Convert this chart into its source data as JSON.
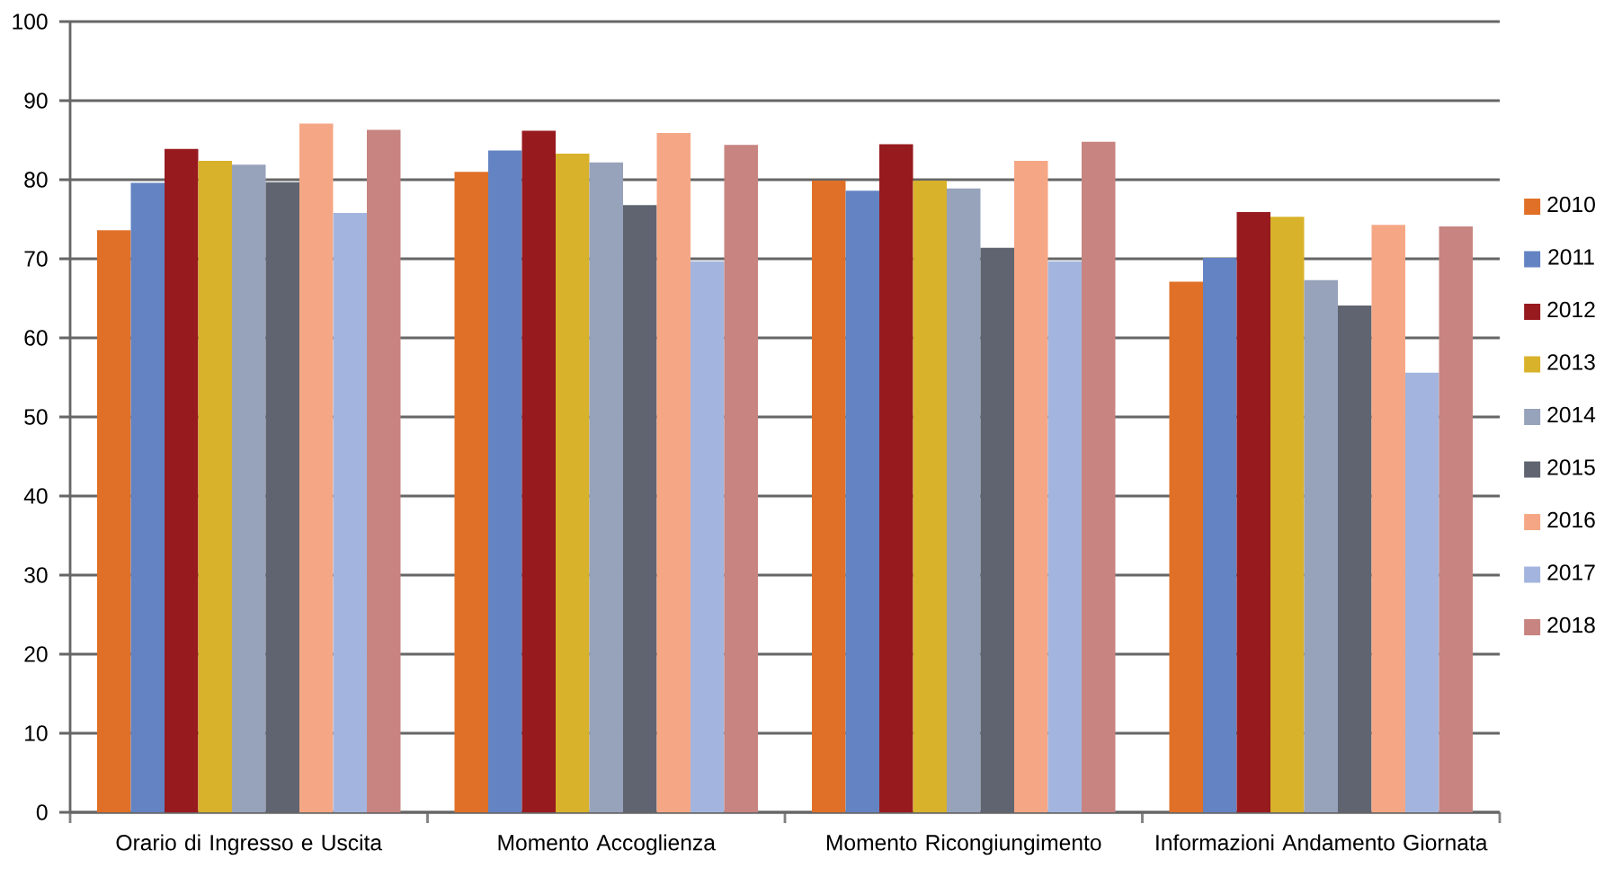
{
  "chart_data": {
    "type": "bar",
    "categories": [
      "Orario di Ingresso e Uscita",
      "Momento Accoglienza",
      "Momento Ricongiungimento",
      "Informazioni Andamento Giornata"
    ],
    "series": [
      {
        "name": "2010",
        "color": "#e07027",
        "values": [
          73.6,
          81.0,
          79.9,
          67.1
        ]
      },
      {
        "name": "2011",
        "color": "#6383c2",
        "values": [
          79.6,
          83.7,
          78.6,
          70.1
        ]
      },
      {
        "name": "2012",
        "color": "#971a1e",
        "values": [
          83.9,
          86.2,
          84.5,
          75.9
        ]
      },
      {
        "name": "2013",
        "color": "#d8b22a",
        "values": [
          82.4,
          83.3,
          79.9,
          75.3
        ]
      },
      {
        "name": "2014",
        "color": "#97a2bb",
        "values": [
          81.9,
          82.2,
          78.9,
          67.3
        ]
      },
      {
        "name": "2015",
        "color": "#5f6470",
        "values": [
          79.7,
          76.8,
          71.4,
          64.1
        ]
      },
      {
        "name": "2016",
        "color": "#f5a785",
        "values": [
          87.1,
          85.9,
          82.4,
          74.3
        ]
      },
      {
        "name": "2017",
        "color": "#a3b5de",
        "values": [
          75.8,
          69.7,
          69.7,
          55.6
        ]
      },
      {
        "name": "2018",
        "color": "#c78480",
        "values": [
          86.3,
          84.4,
          84.8,
          74.1
        ]
      }
    ],
    "ylim": [
      0,
      100
    ],
    "yticks": [
      0,
      10,
      20,
      30,
      40,
      50,
      60,
      70,
      80,
      90,
      100
    ],
    "grid": "y",
    "legend": "right"
  }
}
